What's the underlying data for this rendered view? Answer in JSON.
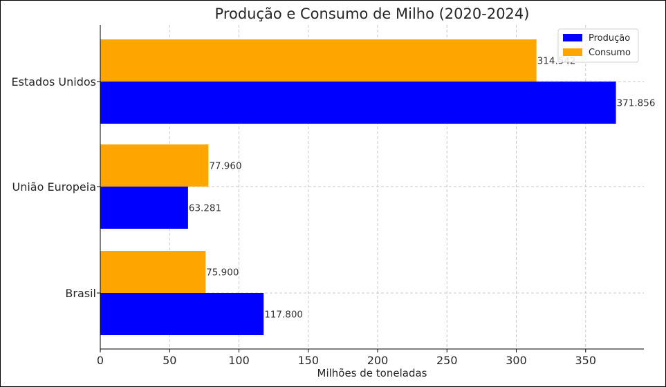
{
  "chart_data": {
    "type": "bar",
    "orientation": "horizontal",
    "title": "Produção e Consumo de Milho (2020-2024)",
    "xlabel": "Milhões de toneladas",
    "ylabel": "",
    "xlim": [
      0,
      392
    ],
    "x_ticks": [
      0,
      50,
      100,
      150,
      200,
      250,
      300,
      350
    ],
    "categories": [
      "Brasil",
      "União Europeia",
      "Estados Unidos"
    ],
    "series": [
      {
        "name": "Produção",
        "color": "#0000ff",
        "values": [
          117.8,
          63.281,
          371.856
        ],
        "labels": [
          "117.800",
          "63.281",
          "371.856"
        ]
      },
      {
        "name": "Consumo",
        "color": "#ffa500",
        "values": [
          75.9,
          77.96,
          314.542
        ],
        "labels": [
          "75.900",
          "77.960",
          "314.542"
        ]
      }
    ],
    "grid": true,
    "legend_position": "top-right"
  }
}
